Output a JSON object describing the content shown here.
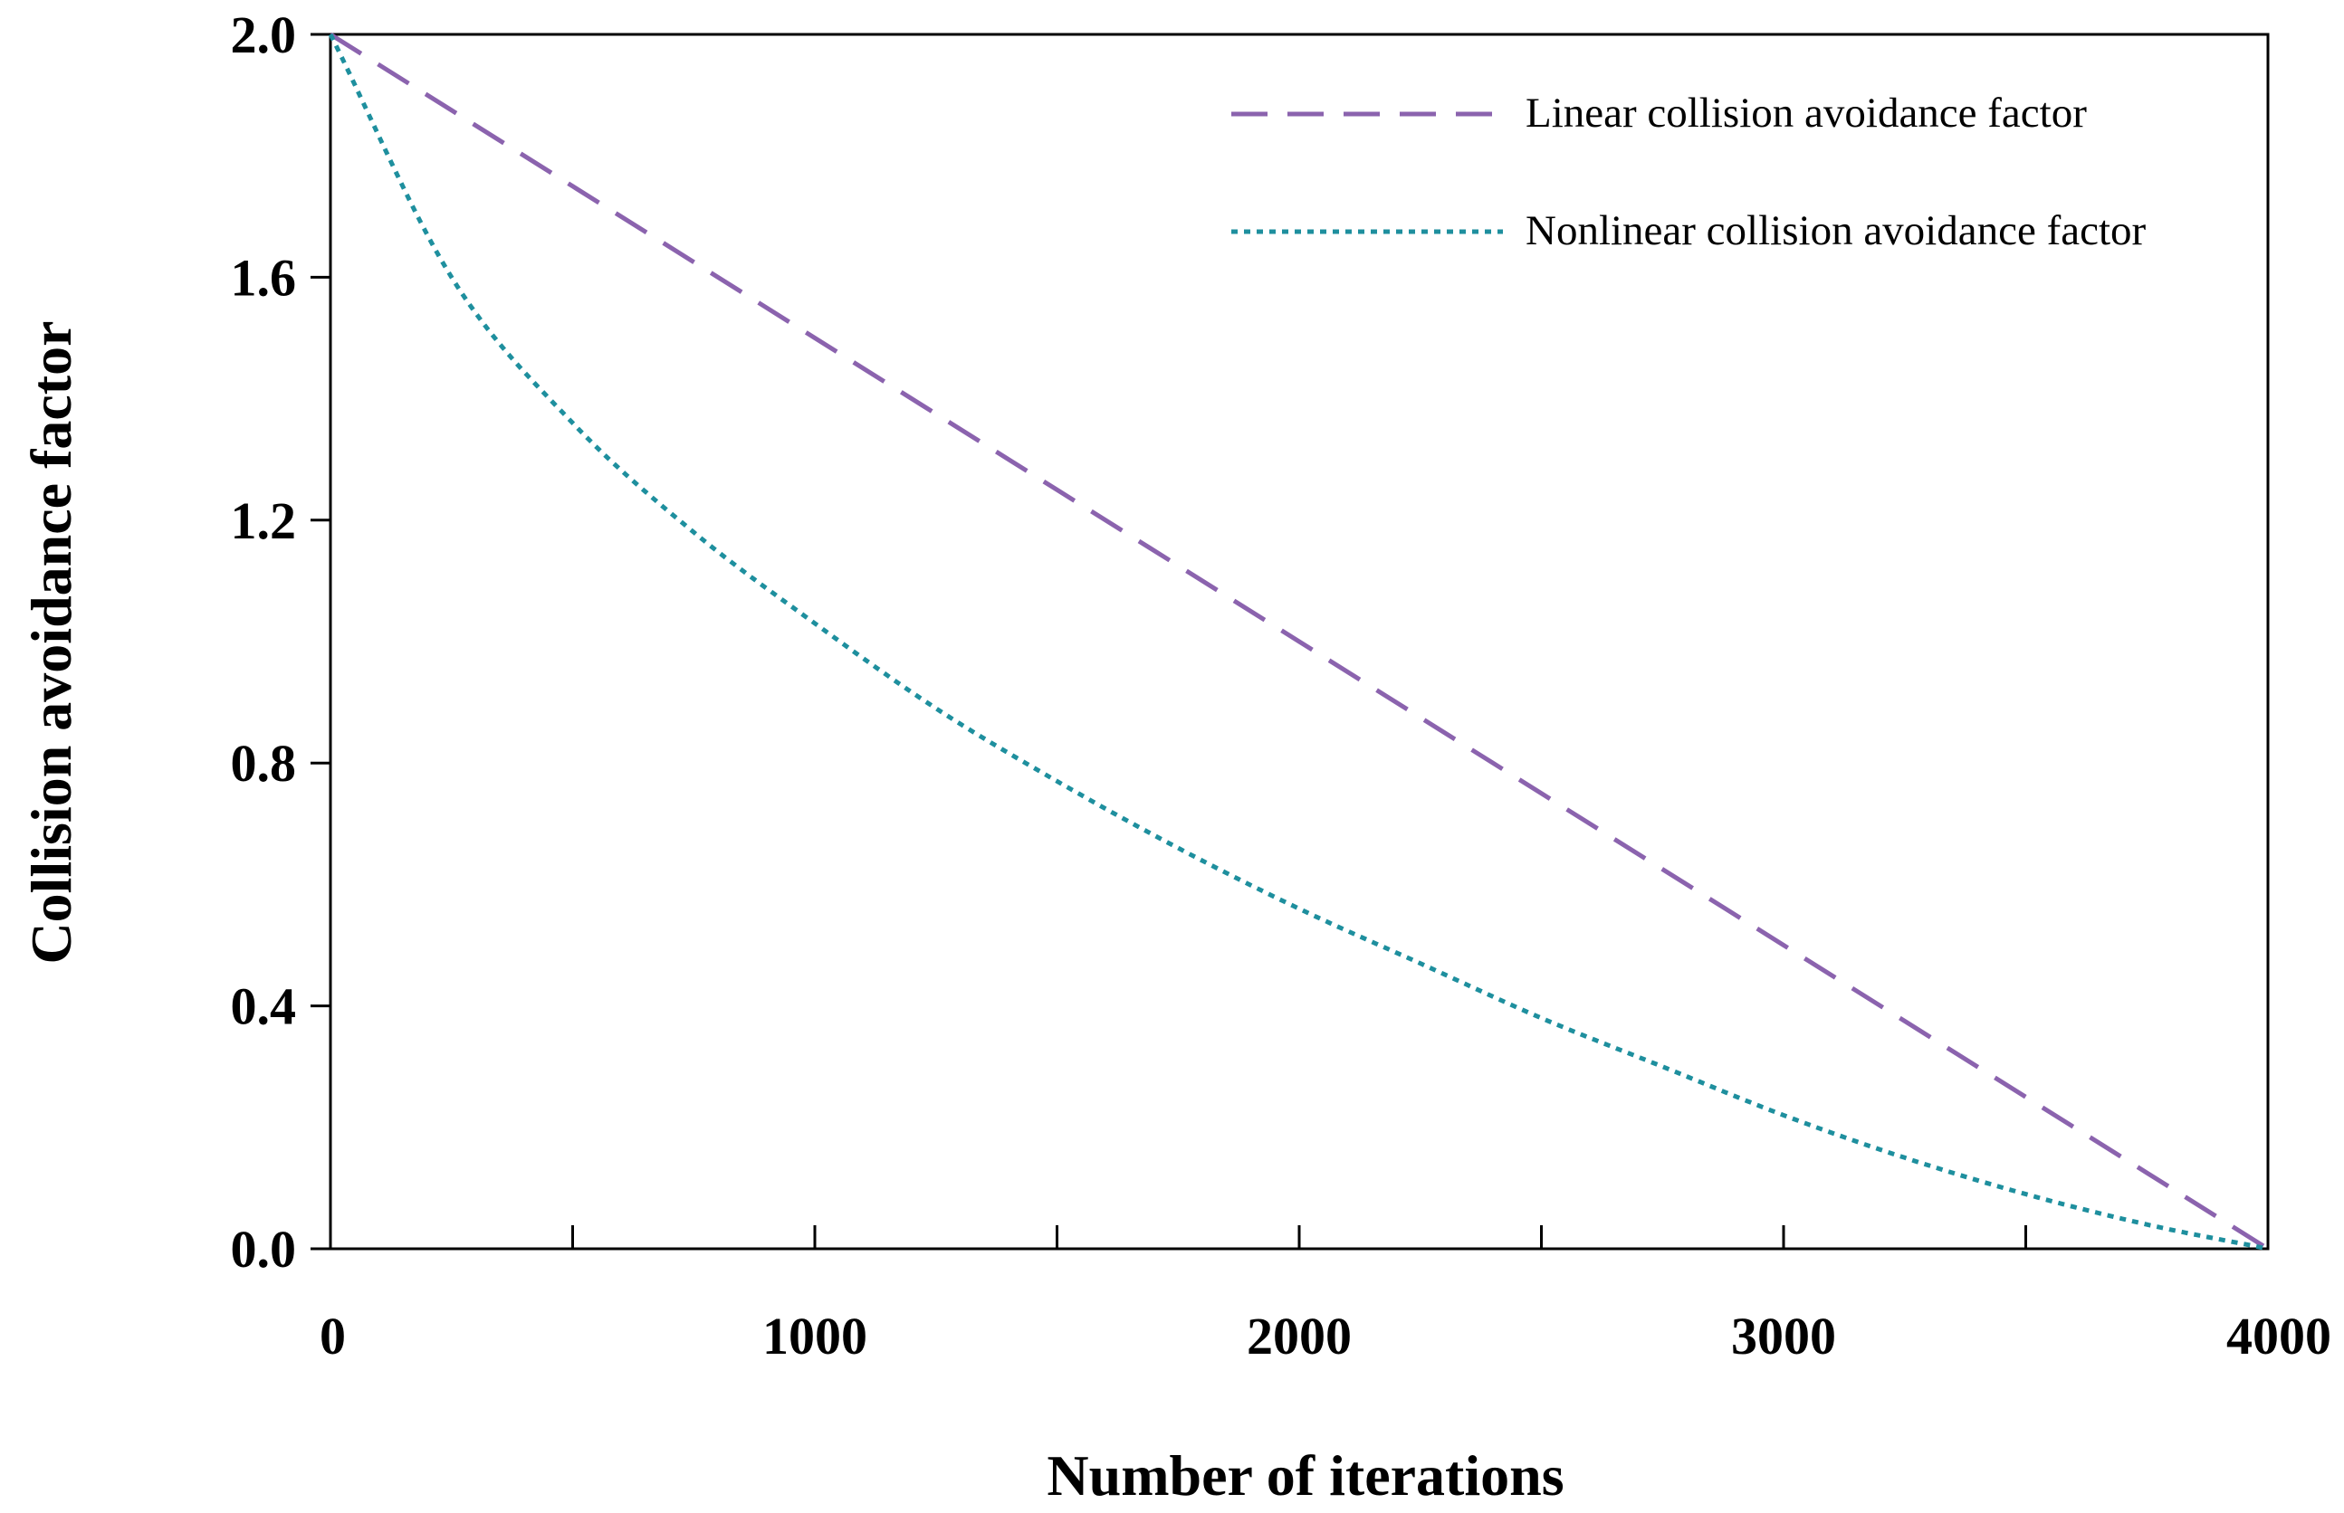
{
  "chart_data": {
    "type": "line",
    "title": "",
    "xlabel": "Number of iterations",
    "ylabel": "Collision avoidance factor",
    "xlim": [
      0,
      4000
    ],
    "ylim": [
      0,
      2.0
    ],
    "grid": false,
    "legend_position": "top-right",
    "x_ticks": [
      0,
      1000,
      2000,
      3000,
      4000
    ],
    "x_tick_labels": [
      "0",
      "1000",
      "2000",
      "3000",
      "4000"
    ],
    "x_minor_ticks": [
      500,
      1500,
      2500,
      3500
    ],
    "y_ticks": [
      0.0,
      0.4,
      0.8,
      1.2,
      1.6,
      2.0
    ],
    "y_tick_labels": [
      "0.0",
      "0.4",
      "0.8",
      "1.2",
      "1.6",
      "2.0"
    ],
    "x": [
      0,
      250,
      500,
      750,
      1000,
      1250,
      1500,
      1750,
      2000,
      2250,
      2500,
      2750,
      3000,
      3250,
      3500,
      3750,
      4000
    ],
    "series": [
      {
        "name": "Linear collision avoidance factor",
        "style": "dashed",
        "color": "#8B63AE",
        "values": [
          2.0,
          1.875,
          1.75,
          1.625,
          1.5,
          1.375,
          1.25,
          1.125,
          1.0,
          0.875,
          0.75,
          0.625,
          0.5,
          0.375,
          0.25,
          0.125,
          0.0
        ]
      },
      {
        "name": "Nonlinear collision avoidance factor",
        "style": "dotted",
        "color": "#1E8F9E",
        "values": [
          2.0,
          1.6,
          1.36,
          1.18,
          1.03,
          0.89,
          0.77,
          0.66,
          0.56,
          0.47,
          0.38,
          0.3,
          0.22,
          0.15,
          0.09,
          0.04,
          0.0
        ]
      }
    ]
  }
}
